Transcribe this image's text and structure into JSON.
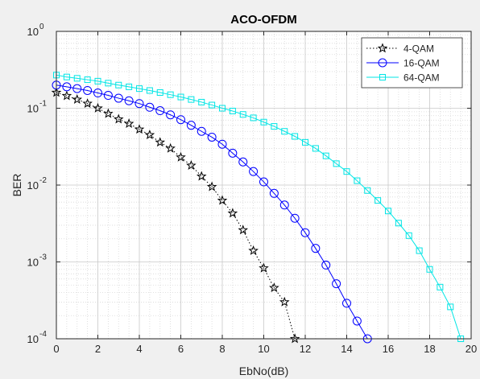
{
  "figure": {
    "background": "#f0f0f0",
    "axes_background": "#ffffff"
  },
  "chart_data": {
    "type": "line",
    "title": "ACO-OFDM",
    "xlabel": "EbNo(dB)",
    "ylabel": "BER",
    "xlim": [
      0,
      20
    ],
    "ylim": [
      0.0001,
      1
    ],
    "yscale": "log",
    "grid": true,
    "minor_grid": true,
    "legend_position": "top-right",
    "xticks": [
      0,
      2,
      4,
      6,
      8,
      10,
      12,
      14,
      16,
      18,
      20
    ],
    "xtick_labels": [
      "0",
      "2",
      "4",
      "6",
      "8",
      "10",
      "12",
      "14",
      "16",
      "18",
      "20"
    ],
    "yticks": [
      0.0001,
      0.001,
      0.01,
      0.1,
      1
    ],
    "ytick_labels": [
      {
        "base": "10",
        "exp": "-4"
      },
      {
        "base": "10",
        "exp": "-3"
      },
      {
        "base": "10",
        "exp": "-2"
      },
      {
        "base": "10",
        "exp": "-1"
      },
      {
        "base": "10",
        "exp": "0"
      }
    ],
    "series": [
      {
        "name": "4-QAM",
        "color": "#000000",
        "line_style": "dotted",
        "marker": "star",
        "x": [
          0,
          0.5,
          1,
          1.5,
          2,
          2.5,
          3,
          3.5,
          4,
          4.5,
          5,
          5.5,
          6,
          6.5,
          7,
          7.5,
          8,
          8.5,
          9,
          9.5,
          10,
          10.5,
          11,
          11.5
        ],
        "y": [
          0.16,
          0.145,
          0.13,
          0.115,
          0.1,
          0.085,
          0.072,
          0.063,
          0.053,
          0.045,
          0.036,
          0.03,
          0.023,
          0.018,
          0.013,
          0.0095,
          0.0063,
          0.0043,
          0.0026,
          0.0014,
          0.00083,
          0.00046,
          0.0003,
          0.0001
        ]
      },
      {
        "name": "16-QAM",
        "color": "#0000ff",
        "line_style": "solid",
        "marker": "circle",
        "x": [
          0,
          0.5,
          1,
          1.5,
          2,
          2.5,
          3,
          3.5,
          4,
          4.5,
          5,
          5.5,
          6,
          6.5,
          7,
          7.5,
          8,
          8.5,
          9,
          9.5,
          10,
          10.5,
          11,
          11.5,
          12,
          12.5,
          13,
          13.5,
          14,
          14.5,
          15
        ],
        "y": [
          0.2,
          0.19,
          0.18,
          0.17,
          0.158,
          0.147,
          0.135,
          0.125,
          0.115,
          0.103,
          0.093,
          0.082,
          0.071,
          0.06,
          0.05,
          0.042,
          0.034,
          0.026,
          0.02,
          0.015,
          0.011,
          0.0078,
          0.0055,
          0.0037,
          0.0024,
          0.0015,
          0.00091,
          0.00052,
          0.00029,
          0.00017,
          0.0001
        ]
      },
      {
        "name": "64-QAM",
        "color": "#00e5e5",
        "line_style": "solid",
        "marker": "square",
        "x": [
          0,
          0.5,
          1,
          1.5,
          2,
          2.5,
          3,
          3.5,
          4,
          4.5,
          5,
          5.5,
          6,
          6.5,
          7,
          7.5,
          8,
          8.5,
          9,
          9.5,
          10,
          10.5,
          11,
          11.5,
          12,
          12.5,
          13,
          13.5,
          14,
          14.5,
          15,
          15.5,
          16,
          16.5,
          17,
          17.5,
          18,
          18.5,
          19,
          19.5
        ],
        "y": [
          0.27,
          0.255,
          0.245,
          0.235,
          0.225,
          0.212,
          0.2,
          0.19,
          0.18,
          0.17,
          0.16,
          0.15,
          0.14,
          0.13,
          0.12,
          0.11,
          0.1,
          0.092,
          0.083,
          0.075,
          0.066,
          0.058,
          0.05,
          0.043,
          0.036,
          0.03,
          0.024,
          0.019,
          0.015,
          0.0114,
          0.0085,
          0.0063,
          0.0046,
          0.0032,
          0.0022,
          0.0014,
          0.0008,
          0.00047,
          0.00026,
          0.0001
        ]
      }
    ]
  }
}
